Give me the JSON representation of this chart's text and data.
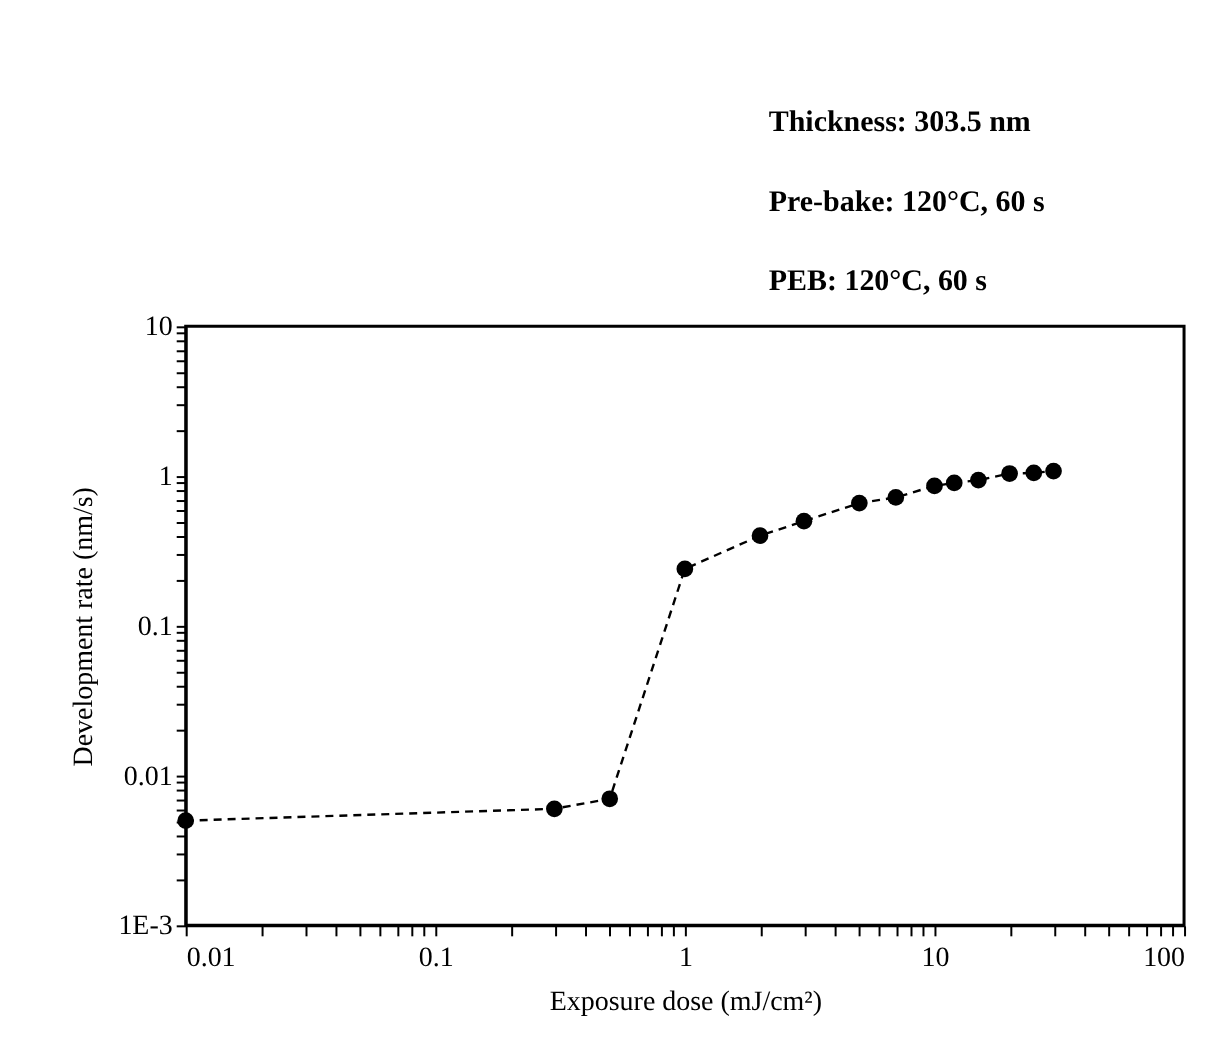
{
  "chart_data": {
    "type": "line",
    "xlabel": "Exposure dose  (mJ/cm²)",
    "ylabel": "Development rate  (nm/s)",
    "annotations": [
      "Thickness: 303.5 nm",
      "Pre-bake: 120°C, 60 s",
      "PEB: 120°C, 60 s"
    ],
    "x": [
      0.01,
      0.3,
      0.5,
      1,
      2,
      3,
      5,
      7,
      10,
      12,
      15,
      20,
      25,
      30
    ],
    "series": [
      {
        "color": "#000000",
        "values": [
          0.005,
          0.006,
          0.007,
          0.24,
          0.4,
          0.5,
          0.66,
          0.72,
          0.86,
          0.9,
          0.94,
          1.04,
          1.05,
          1.08
        ]
      }
    ],
    "log": "xy",
    "xlim": [
      0.01,
      100
    ],
    "ylim": [
      0.001,
      10
    ],
    "xticks": [
      0.01,
      {
        "value": 0.02,
        "label": null
      },
      {
        "value": 0.03,
        "label": null
      },
      {
        "value": 0.04,
        "label": null
      },
      {
        "value": 0.05,
        "label": null
      },
      {
        "value": 0.06,
        "label": null
      },
      {
        "value": 0.07,
        "label": null
      },
      {
        "value": 0.08,
        "label": null
      },
      {
        "value": 0.09,
        "label": null
      },
      0.1,
      {
        "value": 0.2,
        "label": null
      },
      {
        "value": 0.3,
        "label": null
      },
      {
        "value": 0.4,
        "label": null
      },
      {
        "value": 0.5,
        "label": null
      },
      {
        "value": 0.6,
        "label": null
      },
      {
        "value": 0.7,
        "label": null
      },
      {
        "value": 0.8,
        "label": null
      },
      {
        "value": 0.9,
        "label": null
      },
      1,
      {
        "value": 2,
        "label": null
      },
      {
        "value": 3,
        "label": null
      },
      {
        "value": 4,
        "label": null
      },
      {
        "value": 5,
        "label": null
      },
      {
        "value": 6,
        "label": null
      },
      {
        "value": 7,
        "label": null
      },
      {
        "value": 8,
        "label": null
      },
      {
        "value": 9,
        "label": null
      },
      10,
      {
        "value": 20,
        "label": null
      },
      {
        "value": 30,
        "label": null
      },
      {
        "value": 40,
        "label": null
      },
      {
        "value": 50,
        "label": null
      },
      {
        "value": 60,
        "label": null
      },
      {
        "value": 70,
        "label": null
      },
      {
        "value": 80,
        "label": null
      },
      {
        "value": 90,
        "label": null
      },
      100
    ],
    "yticks": [
      {
        "value": 0.001,
        "label": "1E-3"
      },
      {
        "value": 0.002,
        "label": null
      },
      {
        "value": 0.003,
        "label": null
      },
      {
        "value": 0.004,
        "label": null
      },
      {
        "value": 0.005,
        "label": null
      },
      {
        "value": 0.006,
        "label": null
      },
      {
        "value": 0.007,
        "label": null
      },
      {
        "value": 0.008,
        "label": null
      },
      {
        "value": 0.009,
        "label": null
      },
      0.01,
      {
        "value": 0.02,
        "label": null
      },
      {
        "value": 0.03,
        "label": null
      },
      {
        "value": 0.04,
        "label": null
      },
      {
        "value": 0.05,
        "label": null
      },
      {
        "value": 0.06,
        "label": null
      },
      {
        "value": 0.07,
        "label": null
      },
      {
        "value": 0.08,
        "label": null
      },
      {
        "value": 0.09,
        "label": null
      },
      0.1,
      {
        "value": 0.2,
        "label": null
      },
      {
        "value": 0.3,
        "label": null
      },
      {
        "value": 0.4,
        "label": null
      },
      {
        "value": 0.5,
        "label": null
      },
      {
        "value": 0.6,
        "label": null
      },
      {
        "value": 0.7,
        "label": null
      },
      {
        "value": 0.8,
        "label": null
      },
      {
        "value": 0.9,
        "label": null
      },
      1,
      {
        "value": 2,
        "label": null
      },
      {
        "value": 3,
        "label": null
      },
      {
        "value": 4,
        "label": null
      },
      {
        "value": 5,
        "label": null
      },
      {
        "value": 6,
        "label": null
      },
      {
        "value": 7,
        "label": null
      },
      {
        "value": 8,
        "label": null
      },
      {
        "value": 9,
        "label": null
      },
      10
    ],
    "grid": false,
    "marker": "circle",
    "line_style": "dashed"
  }
}
